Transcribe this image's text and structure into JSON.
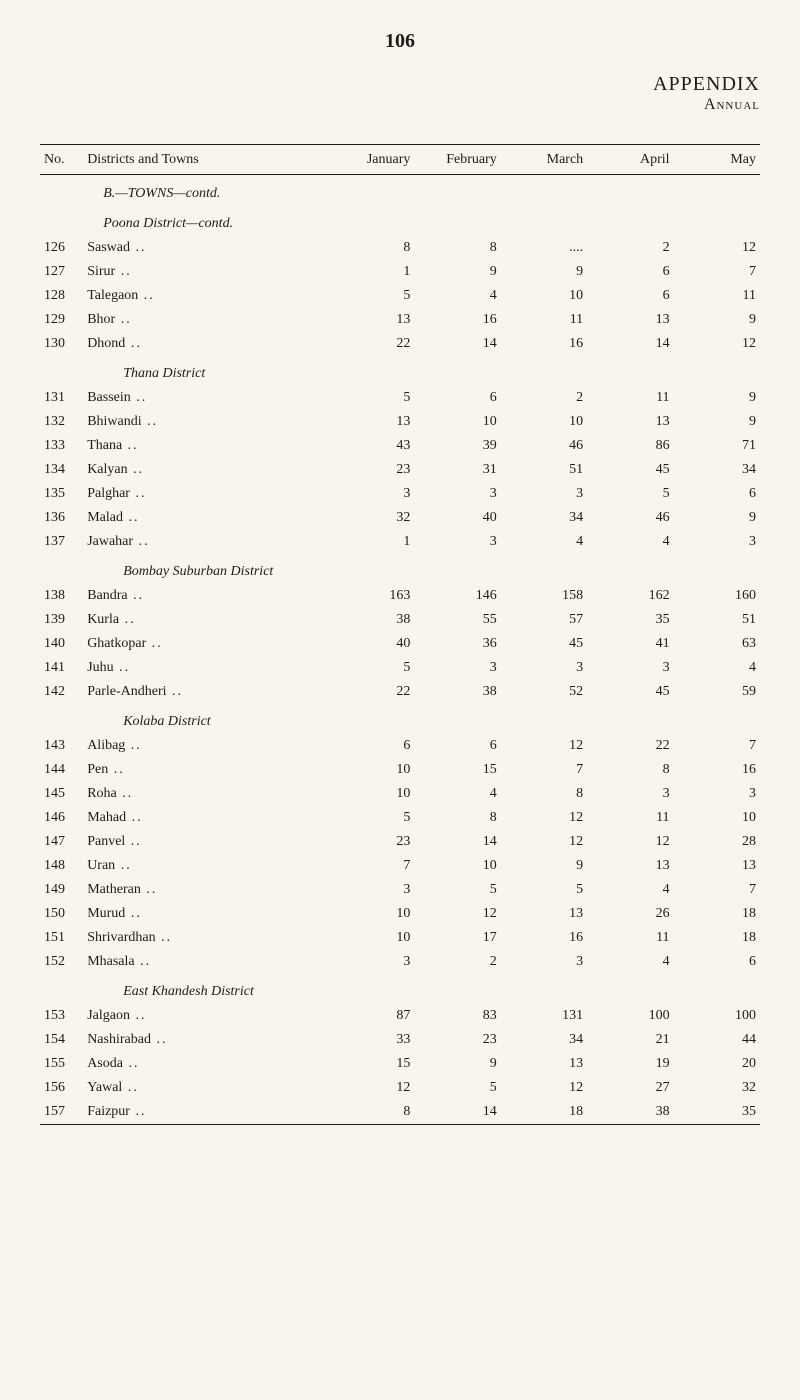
{
  "page_number": "106",
  "appendix": "APPENDIX",
  "annual": "Annual",
  "columns": {
    "no": "No.",
    "districts": "Districts and Towns",
    "jan": "January",
    "feb": "February",
    "mar": "March",
    "apr": "April",
    "may": "May"
  },
  "sections": {
    "towns_contd": "B.—TOWNS—contd.",
    "poona": "Poona District—contd.",
    "thana": "Thana District",
    "bombay_sub": "Bombay Suburban District",
    "kolaba": "Kolaba District",
    "east_khandesh": "East Khandesh District"
  },
  "rows": [
    {
      "no": "126",
      "town": "Saswad",
      "jan": "8",
      "feb": "8",
      "mar": "....",
      "apr": "2",
      "may": "12"
    },
    {
      "no": "127",
      "town": "Sirur",
      "jan": "1",
      "feb": "9",
      "mar": "9",
      "apr": "6",
      "may": "7"
    },
    {
      "no": "128",
      "town": "Talegaon",
      "jan": "5",
      "feb": "4",
      "mar": "10",
      "apr": "6",
      "may": "11"
    },
    {
      "no": "129",
      "town": "Bhor",
      "jan": "13",
      "feb": "16",
      "mar": "11",
      "apr": "13",
      "may": "9"
    },
    {
      "no": "130",
      "town": "Dhond",
      "jan": "22",
      "feb": "14",
      "mar": "16",
      "apr": "14",
      "may": "12"
    },
    {
      "no": "131",
      "town": "Bassein",
      "jan": "5",
      "feb": "6",
      "mar": "2",
      "apr": "11",
      "may": "9"
    },
    {
      "no": "132",
      "town": "Bhiwandi",
      "jan": "13",
      "feb": "10",
      "mar": "10",
      "apr": "13",
      "may": "9"
    },
    {
      "no": "133",
      "town": "Thana",
      "jan": "43",
      "feb": "39",
      "mar": "46",
      "apr": "86",
      "may": "71"
    },
    {
      "no": "134",
      "town": "Kalyan",
      "jan": "23",
      "feb": "31",
      "mar": "51",
      "apr": "45",
      "may": "34"
    },
    {
      "no": "135",
      "town": "Palghar",
      "jan": "3",
      "feb": "3",
      "mar": "3",
      "apr": "5",
      "may": "6"
    },
    {
      "no": "136",
      "town": "Malad",
      "jan": "32",
      "feb": "40",
      "mar": "34",
      "apr": "46",
      "may": "9"
    },
    {
      "no": "137",
      "town": "Jawahar",
      "jan": "1",
      "feb": "3",
      "mar": "4",
      "apr": "4",
      "may": "3"
    },
    {
      "no": "138",
      "town": "Bandra",
      "jan": "163",
      "feb": "146",
      "mar": "158",
      "apr": "162",
      "may": "160"
    },
    {
      "no": "139",
      "town": "Kurla",
      "jan": "38",
      "feb": "55",
      "mar": "57",
      "apr": "35",
      "may": "51"
    },
    {
      "no": "140",
      "town": "Ghatkopar",
      "jan": "40",
      "feb": "36",
      "mar": "45",
      "apr": "41",
      "may": "63"
    },
    {
      "no": "141",
      "town": "Juhu",
      "jan": "5",
      "feb": "3",
      "mar": "3",
      "apr": "3",
      "may": "4"
    },
    {
      "no": "142",
      "town": "Parle-Andheri",
      "jan": "22",
      "feb": "38",
      "mar": "52",
      "apr": "45",
      "may": "59"
    },
    {
      "no": "143",
      "town": "Alibag",
      "jan": "6",
      "feb": "6",
      "mar": "12",
      "apr": "22",
      "may": "7"
    },
    {
      "no": "144",
      "town": "Pen",
      "jan": "10",
      "feb": "15",
      "mar": "7",
      "apr": "8",
      "may": "16"
    },
    {
      "no": "145",
      "town": "Roha",
      "jan": "10",
      "feb": "4",
      "mar": "8",
      "apr": "3",
      "may": "3"
    },
    {
      "no": "146",
      "town": "Mahad",
      "jan": "5",
      "feb": "8",
      "mar": "12",
      "apr": "11",
      "may": "10"
    },
    {
      "no": "147",
      "town": "Panvel",
      "jan": "23",
      "feb": "14",
      "mar": "12",
      "apr": "12",
      "may": "28"
    },
    {
      "no": "148",
      "town": "Uran",
      "jan": "7",
      "feb": "10",
      "mar": "9",
      "apr": "13",
      "may": "13"
    },
    {
      "no": "149",
      "town": "Matheran",
      "jan": "3",
      "feb": "5",
      "mar": "5",
      "apr": "4",
      "may": "7"
    },
    {
      "no": "150",
      "town": "Murud",
      "jan": "10",
      "feb": "12",
      "mar": "13",
      "apr": "26",
      "may": "18"
    },
    {
      "no": "151",
      "town": "Shrivardhan",
      "jan": "10",
      "feb": "17",
      "mar": "16",
      "apr": "11",
      "may": "18"
    },
    {
      "no": "152",
      "town": "Mhasala",
      "jan": "3",
      "feb": "2",
      "mar": "3",
      "apr": "4",
      "may": "6"
    },
    {
      "no": "153",
      "town": "Jalgaon",
      "jan": "87",
      "feb": "83",
      "mar": "131",
      "apr": "100",
      "may": "100"
    },
    {
      "no": "154",
      "town": "Nashirabad",
      "jan": "33",
      "feb": "23",
      "mar": "34",
      "apr": "21",
      "may": "44"
    },
    {
      "no": "155",
      "town": "Asoda",
      "jan": "15",
      "feb": "9",
      "mar": "13",
      "apr": "19",
      "may": "20"
    },
    {
      "no": "156",
      "town": "Yawal",
      "jan": "12",
      "feb": "5",
      "mar": "12",
      "apr": "27",
      "may": "32"
    },
    {
      "no": "157",
      "town": "Faizpur",
      "jan": "8",
      "feb": "14",
      "mar": "18",
      "apr": "38",
      "may": "35"
    }
  ]
}
